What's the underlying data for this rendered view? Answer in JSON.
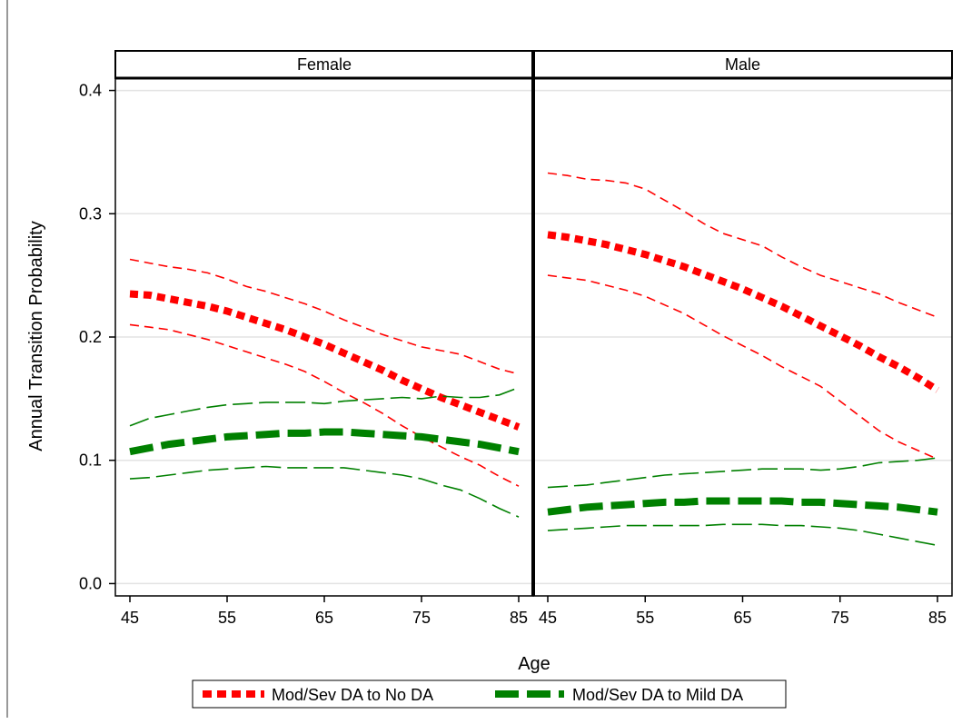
{
  "chart_data": {
    "type": "line",
    "xlabel": "Age",
    "ylabel": "Annual Transition Probability",
    "ylim": [
      -0.01,
      0.41
    ],
    "yticks": [
      "0.0",
      "0.1",
      "0.2",
      "0.3",
      "0.4"
    ],
    "xlim": [
      44,
      86
    ],
    "xticks": [
      "45",
      "55",
      "65",
      "75",
      "85"
    ],
    "grid": true,
    "legend": {
      "placement": "bottom",
      "entries": [
        {
          "label": "Mod/Sev DA to No DA",
          "color": "#ff0000"
        },
        {
          "label": "Mod/Sev DA to Mild DA",
          "color": "#008000"
        }
      ]
    },
    "x": [
      45,
      47,
      49,
      51,
      53,
      55,
      57,
      59,
      61,
      63,
      65,
      67,
      69,
      71,
      73,
      75,
      77,
      79,
      81,
      83,
      85
    ],
    "panels": [
      {
        "title": "Female",
        "series": [
          {
            "name": "Mod/Sev DA to No DA",
            "color": "#ff0000",
            "role": "estimate",
            "values": [
              0.235,
              0.234,
              0.231,
              0.228,
              0.225,
              0.221,
              0.216,
              0.211,
              0.206,
              0.2,
              0.194,
              0.187,
              0.18,
              0.173,
              0.165,
              0.158,
              0.151,
              0.145,
              0.139,
              0.133,
              0.127
            ]
          },
          {
            "name": "Mod/Sev DA to No DA",
            "color": "#ff0000",
            "role": "upper",
            "values": [
              0.263,
              0.26,
              0.257,
              0.255,
              0.252,
              0.247,
              0.241,
              0.237,
              0.232,
              0.227,
              0.221,
              0.214,
              0.208,
              0.202,
              0.197,
              0.192,
              0.189,
              0.186,
              0.18,
              0.174,
              0.17
            ]
          },
          {
            "name": "Mod/Sev DA to No DA",
            "color": "#ff0000",
            "role": "lower",
            "values": [
              0.21,
              0.208,
              0.206,
              0.202,
              0.198,
              0.193,
              0.188,
              0.183,
              0.178,
              0.172,
              0.164,
              0.155,
              0.147,
              0.138,
              0.128,
              0.119,
              0.111,
              0.103,
              0.096,
              0.087,
              0.079
            ]
          },
          {
            "name": "Mod/Sev DA to Mild DA",
            "color": "#008000",
            "role": "estimate",
            "values": [
              0.107,
              0.11,
              0.113,
              0.115,
              0.117,
              0.119,
              0.12,
              0.121,
              0.122,
              0.122,
              0.123,
              0.123,
              0.122,
              0.121,
              0.12,
              0.119,
              0.117,
              0.115,
              0.113,
              0.11,
              0.107
            ]
          },
          {
            "name": "Mod/Sev DA to Mild DA",
            "color": "#008000",
            "role": "upper",
            "values": [
              0.128,
              0.134,
              0.137,
              0.14,
              0.143,
              0.145,
              0.146,
              0.147,
              0.147,
              0.147,
              0.146,
              0.148,
              0.149,
              0.15,
              0.151,
              0.15,
              0.152,
              0.151,
              0.151,
              0.153,
              0.159
            ]
          },
          {
            "name": "Mod/Sev DA to Mild DA",
            "color": "#008000",
            "role": "lower",
            "values": [
              0.085,
              0.086,
              0.088,
              0.09,
              0.092,
              0.093,
              0.094,
              0.095,
              0.094,
              0.094,
              0.094,
              0.094,
              0.092,
              0.09,
              0.088,
              0.085,
              0.08,
              0.076,
              0.069,
              0.061,
              0.054
            ]
          }
        ]
      },
      {
        "title": "Male",
        "series": [
          {
            "name": "Mod/Sev DA to No DA",
            "color": "#ff0000",
            "role": "estimate",
            "values": [
              0.283,
              0.281,
              0.278,
              0.275,
              0.271,
              0.267,
              0.262,
              0.257,
              0.251,
              0.245,
              0.239,
              0.232,
              0.225,
              0.217,
              0.209,
              0.201,
              0.193,
              0.184,
              0.176,
              0.167,
              0.157
            ]
          },
          {
            "name": "Mod/Sev DA to No DA",
            "color": "#ff0000",
            "role": "upper",
            "values": [
              0.333,
              0.331,
              0.328,
              0.327,
              0.325,
              0.32,
              0.311,
              0.302,
              0.292,
              0.284,
              0.279,
              0.274,
              0.265,
              0.257,
              0.25,
              0.245,
              0.24,
              0.235,
              0.228,
              0.222,
              0.216
            ]
          },
          {
            "name": "Mod/Sev DA to No DA",
            "color": "#ff0000",
            "role": "lower",
            "values": [
              0.25,
              0.248,
              0.246,
              0.242,
              0.238,
              0.233,
              0.226,
              0.219,
              0.21,
              0.201,
              0.193,
              0.185,
              0.176,
              0.168,
              0.16,
              0.148,
              0.136,
              0.124,
              0.115,
              0.108,
              0.101
            ]
          },
          {
            "name": "Mod/Sev DA to Mild DA",
            "color": "#008000",
            "role": "estimate",
            "values": [
              0.058,
              0.06,
              0.062,
              0.063,
              0.064,
              0.065,
              0.066,
              0.066,
              0.067,
              0.067,
              0.067,
              0.067,
              0.067,
              0.066,
              0.066,
              0.065,
              0.064,
              0.063,
              0.062,
              0.06,
              0.058
            ]
          },
          {
            "name": "Mod/Sev DA to Mild DA",
            "color": "#008000",
            "role": "upper",
            "values": [
              0.078,
              0.079,
              0.08,
              0.082,
              0.084,
              0.086,
              0.088,
              0.089,
              0.09,
              0.091,
              0.092,
              0.093,
              0.093,
              0.093,
              0.092,
              0.093,
              0.095,
              0.098,
              0.099,
              0.1,
              0.102
            ]
          },
          {
            "name": "Mod/Sev DA to Mild DA",
            "color": "#008000",
            "role": "lower",
            "values": [
              0.043,
              0.044,
              0.045,
              0.046,
              0.047,
              0.047,
              0.047,
              0.047,
              0.047,
              0.048,
              0.048,
              0.048,
              0.047,
              0.047,
              0.046,
              0.045,
              0.043,
              0.04,
              0.037,
              0.034,
              0.031
            ]
          }
        ]
      }
    ]
  }
}
